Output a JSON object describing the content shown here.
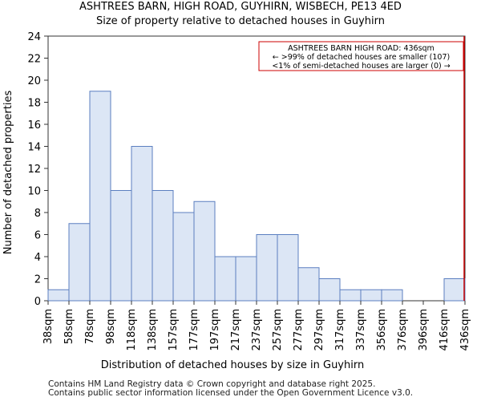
{
  "chart_data": {
    "type": "bar",
    "title": "ASHTREES BARN, HIGH ROAD, GUYHIRN, WISBECH, PE13 4ED",
    "subtitle": "Size of property relative to detached houses in Guyhirn",
    "xlabel": "Distribution of detached houses by size in Guyhirn",
    "ylabel": "Number of detached properties",
    "ylim": [
      0,
      24
    ],
    "yticks": [
      0,
      2,
      4,
      6,
      8,
      10,
      12,
      14,
      16,
      18,
      20,
      22,
      24
    ],
    "tick_labels": [
      "38sqm",
      "58sqm",
      "78sqm",
      "98sqm",
      "118sqm",
      "138sqm",
      "157sqm",
      "177sqm",
      "197sqm",
      "217sqm",
      "237sqm",
      "257sqm",
      "277sqm",
      "297sqm",
      "317sqm",
      "337sqm",
      "356sqm",
      "376sqm",
      "396sqm",
      "416sqm",
      "436sqm"
    ],
    "values": [
      1,
      7,
      19,
      10,
      14,
      10,
      8,
      9,
      4,
      4,
      6,
      6,
      3,
      2,
      1,
      1,
      1,
      0,
      0,
      2
    ],
    "bar_color": "#dce6f5",
    "bar_edge_color": "#5b7fc0",
    "marker_color": "#cc0000",
    "marker_position_index": 20,
    "annotation": [
      "ASHTREES BARN HIGH ROAD: 436sqm",
      "← >99% of detached houses are smaller (107)",
      "<1% of semi-detached houses are larger (0) →"
    ]
  },
  "footer": [
    "Contains HM Land Registry data © Crown copyright and database right 2025.",
    "Contains public sector information licensed under the Open Government Licence v3.0."
  ]
}
